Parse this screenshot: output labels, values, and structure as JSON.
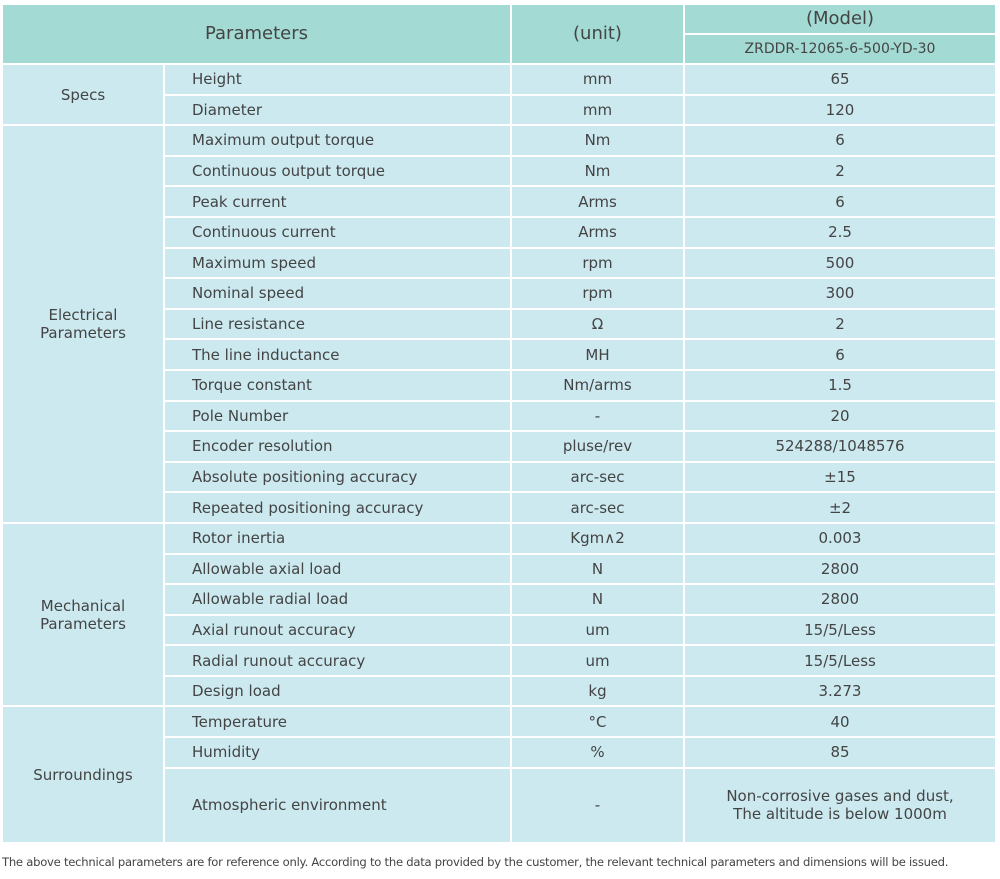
{
  "header": {
    "parameters": "Parameters",
    "unit": "(unit)",
    "model_label": "(Model)",
    "model": "ZRDDR-12065-6-500-YD-30"
  },
  "groups": [
    {
      "name": "Specs",
      "rows": [
        {
          "param": "Height",
          "unit": "mm",
          "value": "65"
        },
        {
          "param": "Diameter",
          "unit": "mm",
          "value": "120"
        }
      ]
    },
    {
      "name": "Electrical\nParameters",
      "rows": [
        {
          "param": "Maximum output torque",
          "unit": "Nm",
          "value": "6"
        },
        {
          "param": "Continuous output torque",
          "unit": "Nm",
          "value": "2"
        },
        {
          "param": "Peak current",
          "unit": "Arms",
          "value": "6"
        },
        {
          "param": "Continuous current",
          "unit": "Arms",
          "value": "2.5"
        },
        {
          "param": "Maximum speed",
          "unit": "rpm",
          "value": "500"
        },
        {
          "param": "Nominal speed",
          "unit": "rpm",
          "value": "300"
        },
        {
          "param": "Line resistance",
          "unit": "Ω",
          "value": "2"
        },
        {
          "param": "The line inductance",
          "unit": "MH",
          "value": "6"
        },
        {
          "param": "Torque constant",
          "unit": "Nm/arms",
          "value": "1.5"
        },
        {
          "param": "Pole Number",
          "unit": "-",
          "value": "20"
        },
        {
          "param": "Encoder resolution",
          "unit": "pluse/rev",
          "value": "524288/1048576"
        },
        {
          "param": "Absolute positioning accuracy",
          "unit": "arc-sec",
          "value": "±15"
        },
        {
          "param": "Repeated positioning accuracy",
          "unit": "arc-sec",
          "value": "±2"
        }
      ]
    },
    {
      "name": "Mechanical\nParameters",
      "rows": [
        {
          "param": "Rotor inertia",
          "unit": "Kgm∧2",
          "value": "0.003"
        },
        {
          "param": "Allowable axial load",
          "unit": "N",
          "value": "2800"
        },
        {
          "param": "Allowable radial load",
          "unit": "N",
          "value": "2800"
        },
        {
          "param": "Axial runout accuracy",
          "unit": "um",
          "value": "15/5/Less"
        },
        {
          "param": "Radial runout accuracy",
          "unit": "um",
          "value": "15/5/Less"
        },
        {
          "param": "Design load",
          "unit": "kg",
          "value": "3.273"
        }
      ]
    },
    {
      "name": "Surroundings",
      "rows": [
        {
          "param": "Temperature",
          "unit": "°C",
          "value": "40"
        },
        {
          "param": "Humidity",
          "unit": "%",
          "value": "85"
        },
        {
          "param": "Atmospheric environment",
          "unit": "-",
          "value": "Non-corrosive gases and dust,\nThe altitude is below 1000m"
        }
      ]
    }
  ],
  "footnote": "The above technical parameters are for reference only. According to the data provided by the customer, the relevant technical parameters and dimensions will be issued."
}
